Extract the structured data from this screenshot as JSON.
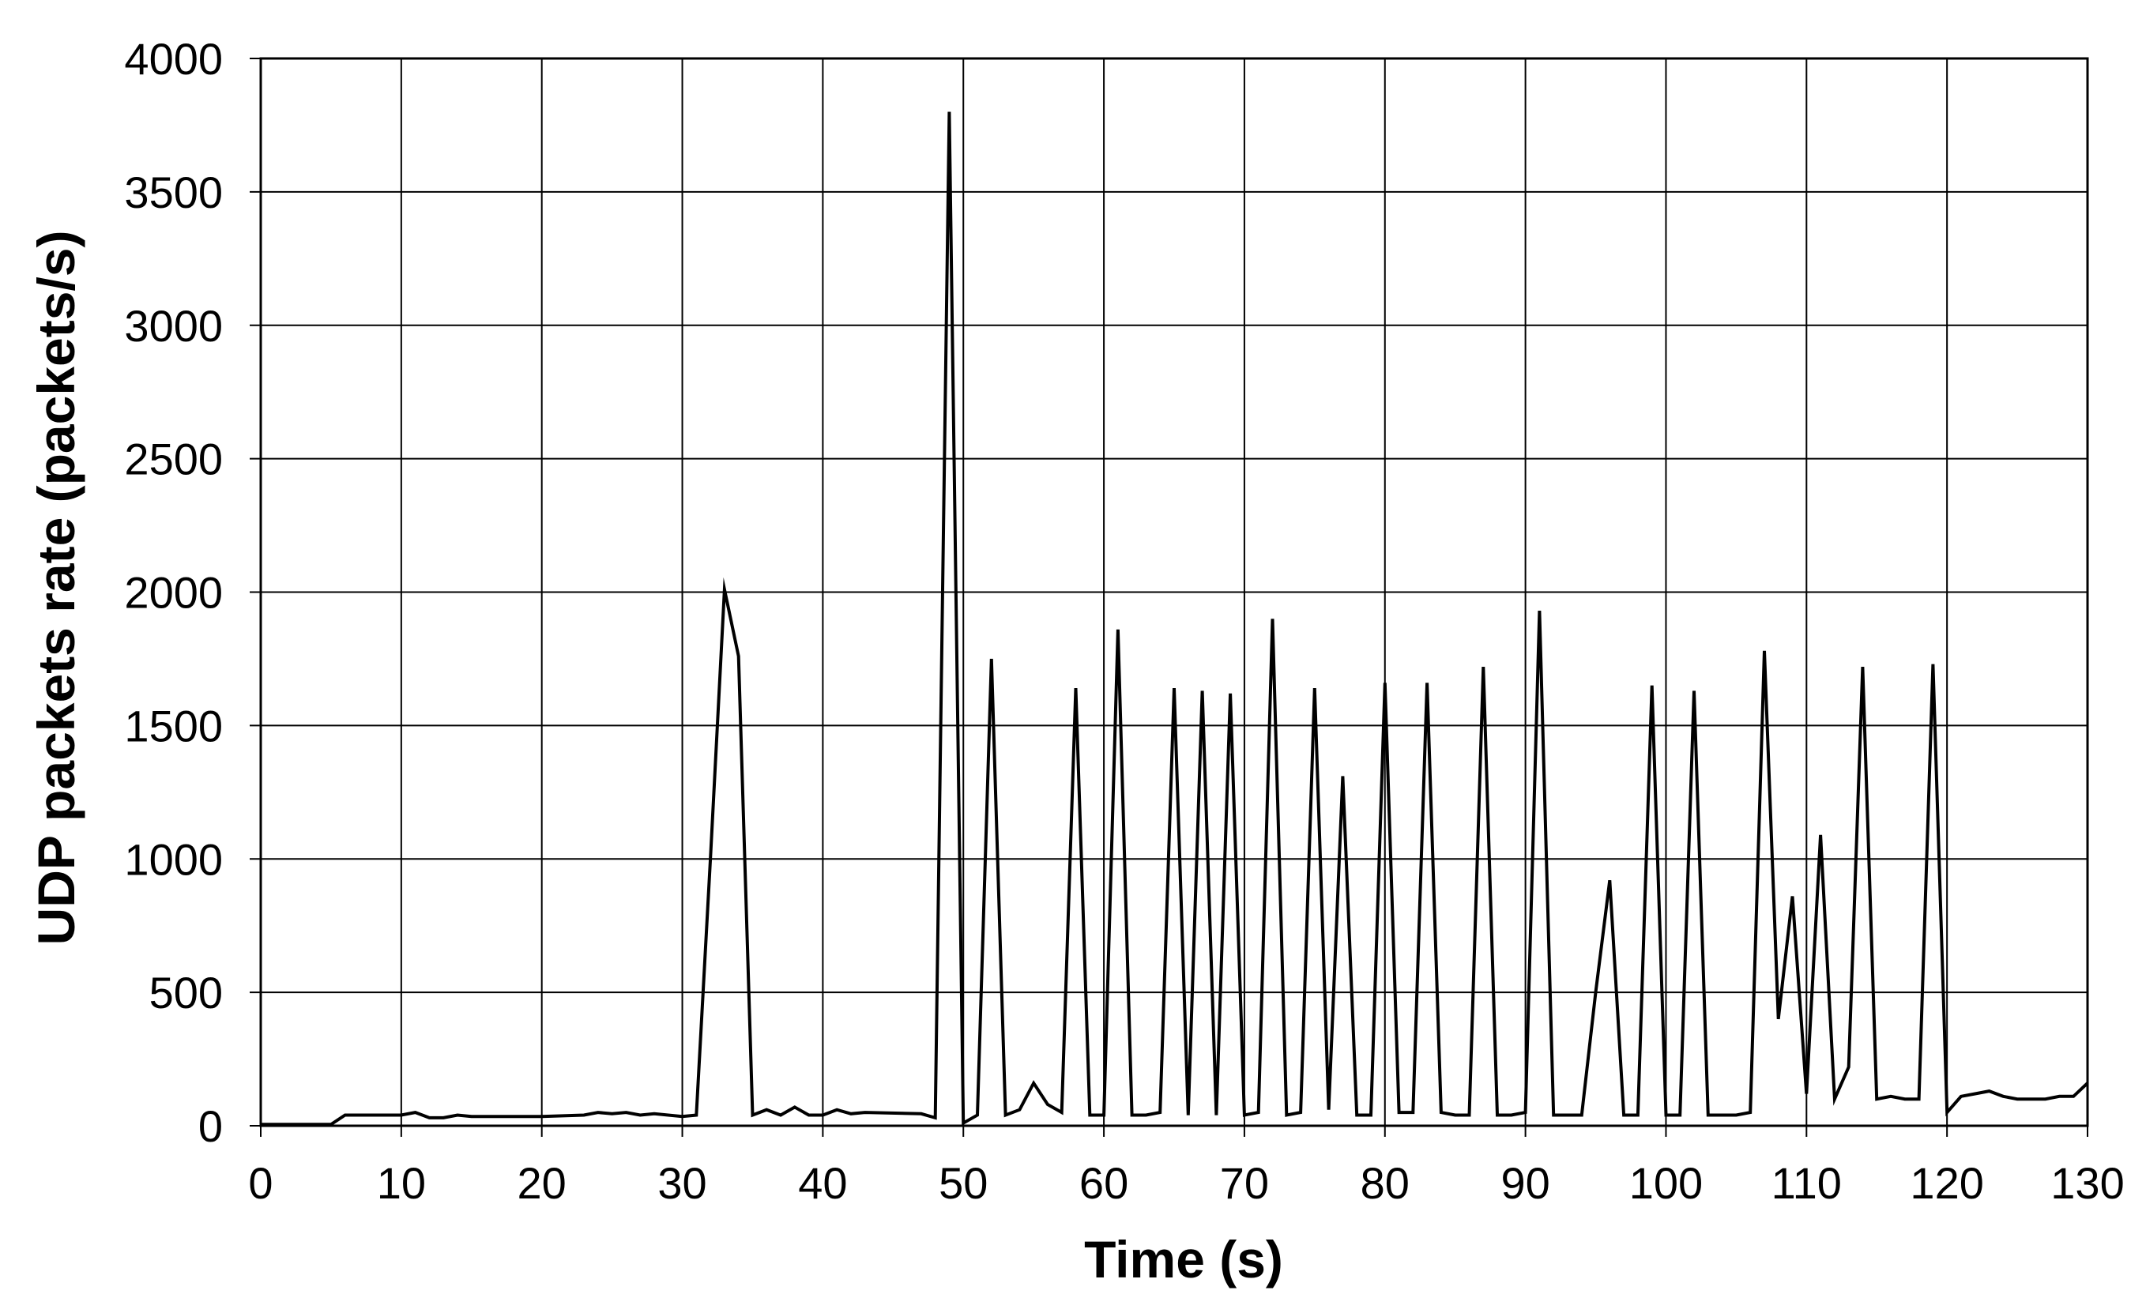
{
  "chart_data": {
    "type": "line",
    "title": "",
    "xlabel": "Time (s)",
    "ylabel": "UDP packets rate (packets/s)",
    "xlim": [
      0,
      130
    ],
    "ylim": [
      0,
      4000
    ],
    "x_ticks": [
      "0",
      "10",
      "20",
      "30",
      "40",
      "50",
      "60",
      "70",
      "80",
      "90",
      "100",
      "110",
      "120",
      "130"
    ],
    "y_ticks": [
      "0",
      "500",
      "1000",
      "1500",
      "2000",
      "2500",
      "3000",
      "3500",
      "4000"
    ],
    "grid": true,
    "legend": "none",
    "line_color": "#000000",
    "series": [
      {
        "x": [
          0,
          5,
          6,
          10,
          11,
          12,
          13,
          14,
          15,
          20,
          23,
          24,
          25,
          26,
          27,
          28,
          30,
          31,
          32,
          33,
          34,
          35,
          36,
          37,
          38,
          39,
          40,
          41,
          42,
          43,
          47,
          48,
          49,
          50,
          51,
          52,
          53,
          54,
          55,
          56,
          57,
          58,
          59,
          60,
          61,
          62,
          63,
          64,
          65,
          66,
          67,
          68,
          69,
          70,
          71,
          72,
          73,
          74,
          75,
          76,
          77,
          78,
          79,
          80,
          81,
          82,
          83,
          84,
          85,
          86,
          87,
          88,
          89,
          90,
          91,
          92,
          93,
          94,
          95,
          96,
          97,
          98,
          99,
          100,
          101,
          102,
          103,
          104,
          105,
          106,
          107,
          108,
          109,
          110,
          111,
          112,
          113,
          114,
          115,
          116,
          117,
          118,
          119,
          120,
          121,
          122,
          123,
          124,
          125,
          126,
          127,
          128,
          129,
          130
        ],
        "y": [
          5,
          5,
          40,
          40,
          50,
          30,
          30,
          40,
          35,
          35,
          40,
          50,
          45,
          50,
          40,
          45,
          35,
          40,
          1000,
          2010,
          1760,
          40,
          60,
          40,
          70,
          40,
          40,
          60,
          45,
          50,
          45,
          30,
          3800,
          10,
          40,
          1750,
          40,
          60,
          160,
          80,
          50,
          1640,
          40,
          40,
          1860,
          40,
          40,
          50,
          1640,
          40,
          1630,
          40,
          1620,
          40,
          50,
          1900,
          40,
          50,
          1640,
          60,
          1310,
          40,
          40,
          1660,
          50,
          50,
          1660,
          50,
          40,
          40,
          1720,
          40,
          40,
          50,
          1930,
          40,
          40,
          40,
          500,
          920,
          40,
          40,
          1650,
          40,
          40,
          1630,
          40,
          40,
          40,
          50,
          1780,
          400,
          860,
          120,
          1090,
          100,
          220,
          1720,
          100,
          110,
          100,
          100,
          1730,
          50,
          110,
          120,
          130,
          110,
          100,
          100,
          100,
          110,
          110,
          160
        ]
      }
    ]
  }
}
